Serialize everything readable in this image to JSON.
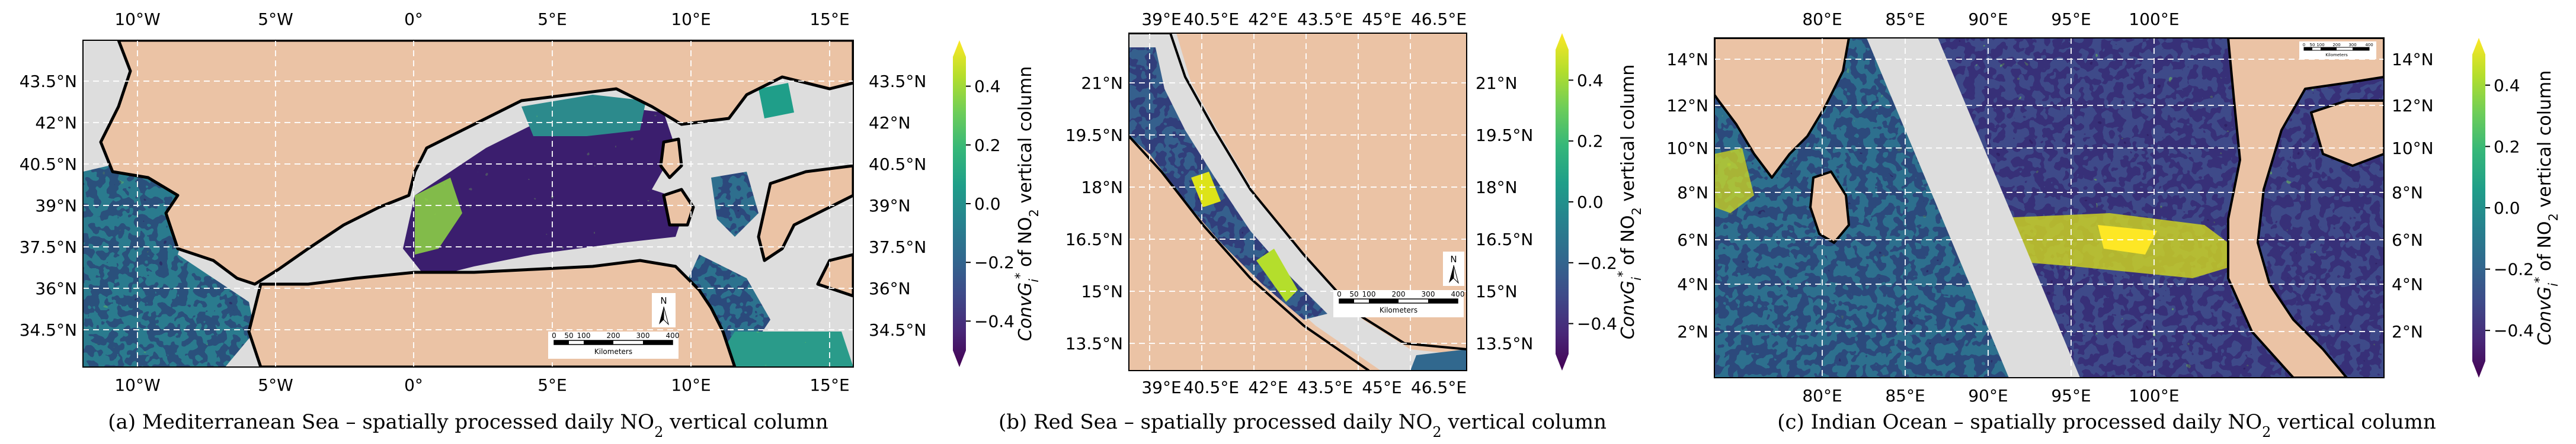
{
  "figure": {
    "panels": [
      {
        "id": "a",
        "caption_prefix": "(a) Mediterranean Sea – spatially processed daily NO",
        "caption_sub": "2",
        "caption_suffix": " vertical column",
        "lon_labels": [
          "10°W",
          "5°W",
          "0°",
          "5°E",
          "10°E",
          "15°E"
        ],
        "lat_labels": [
          "43.5°N",
          "42°N",
          "40.5°N",
          "39°N",
          "37.5°N",
          "36°N",
          "34.5°N"
        ],
        "scalebar": {
          "ticks": [
            "0",
            "50",
            "100",
            "200",
            "300",
            "400"
          ],
          "unit": "Kilometers"
        }
      },
      {
        "id": "b",
        "caption_prefix": "(b) Red Sea – spatially processed daily NO",
        "caption_sub": "2",
        "caption_suffix": " vertical column",
        "lon_labels": [
          "39°E",
          "40.5°E",
          "42°E",
          "43.5°E",
          "45°E",
          "46.5°E"
        ],
        "lat_labels": [
          "21°N",
          "19.5°N",
          "18°N",
          "16.5°N",
          "15°N",
          "13.5°N"
        ],
        "scalebar": {
          "ticks": [
            "0",
            "50",
            "100",
            "200",
            "300",
            "400"
          ],
          "unit": "Kilometers"
        }
      },
      {
        "id": "c",
        "caption_prefix": "(c) Indian Ocean – spatially processed daily NO",
        "caption_sub": "2",
        "caption_suffix": " vertical column",
        "lon_labels": [
          "80°E",
          "85°E",
          "90°E",
          "95°E",
          "100°E"
        ],
        "lat_labels": [
          "14°N",
          "12°N",
          "10°N",
          "8°N",
          "6°N",
          "4°N",
          "2°N"
        ],
        "scalebar": {
          "ticks": [
            "0",
            "50",
            "100",
            "200",
            "300",
            "400"
          ],
          "unit": "Kilometers"
        }
      }
    ],
    "colorbar": {
      "tick_labels": [
        "0.4",
        "0.2",
        "0.0",
        "−0.2",
        "−0.4"
      ],
      "label_main": "ConvG",
      "label_sub": "i",
      "label_sup": "*",
      "label_rest": " of NO",
      "label_sub2": "2",
      "label_tail": " vertical column"
    },
    "colors": {
      "land": "#EBC3A5",
      "buffer": "#DDDDDD",
      "coast": "#000000",
      "grid": "#FFFFFF",
      "viridis": [
        "#440154",
        "#482878",
        "#3E4A89",
        "#31688E",
        "#26828E",
        "#1F9E89",
        "#35B779",
        "#6DCD59",
        "#B4DE2C",
        "#FDE725"
      ]
    },
    "north_label": "N"
  }
}
